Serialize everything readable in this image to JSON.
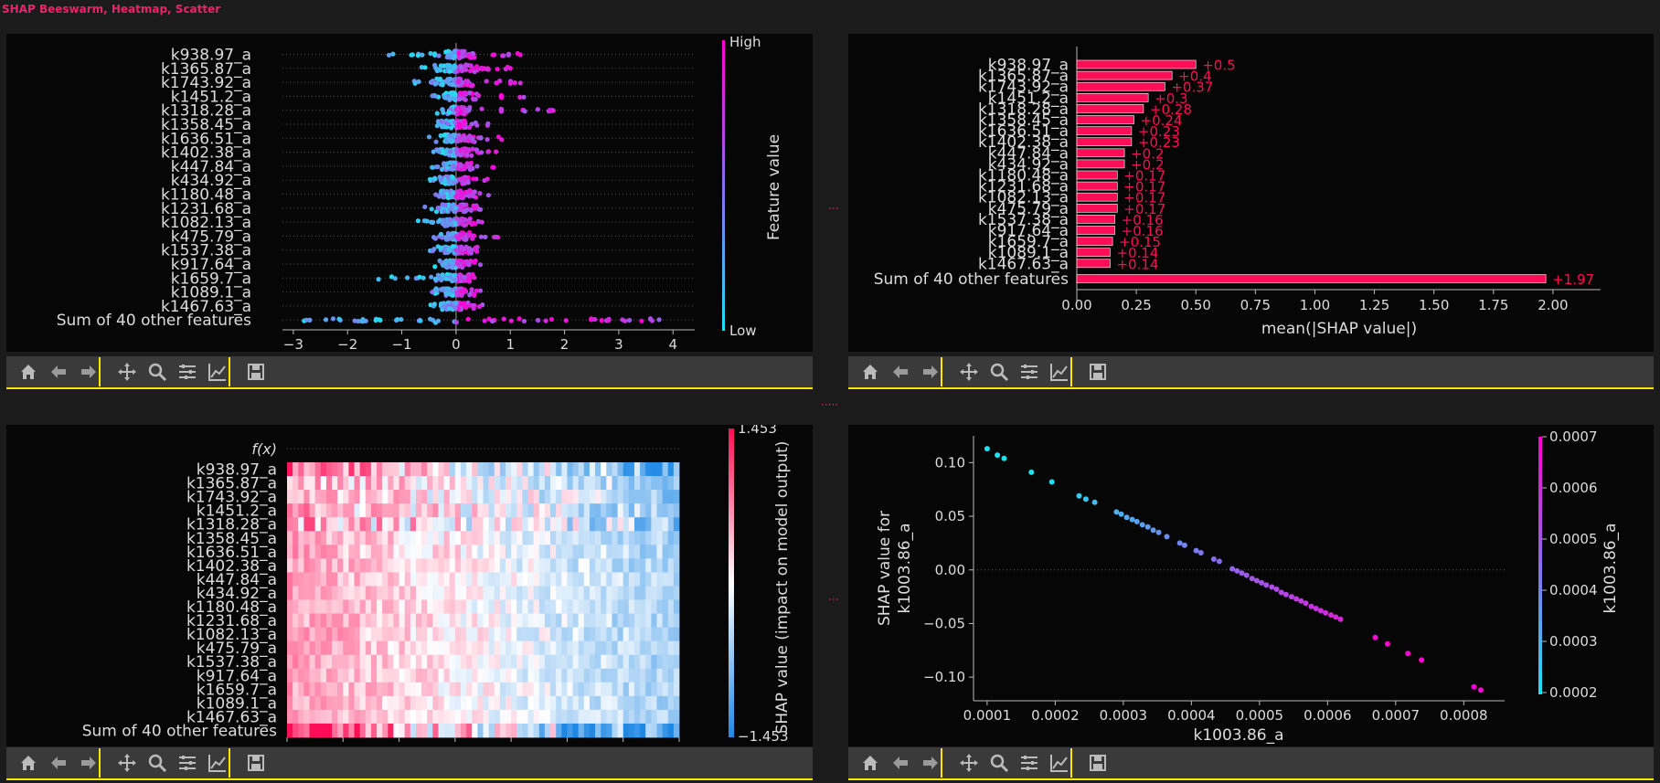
{
  "window": {
    "title": "SHAP Beeswarm, Heatmap, Scatter"
  },
  "toolbar": {
    "buttons": [
      "home-icon",
      "back-arrow-icon",
      "forward-arrow-icon",
      "pan-icon",
      "zoom-icon",
      "subplots-icon",
      "edit-axis-icon",
      "save-icon"
    ]
  },
  "colors": {
    "accent": "#e8246a",
    "toolbar_border": "#ffe600",
    "cyan": "#1de3f0",
    "magenta": "#ff00d4",
    "bar": "#ff0d57",
    "heat_pos": "#ff0d57",
    "heat_neg": "#1e88e5"
  },
  "features": [
    "k938.97_a",
    "k1365.87_a",
    "k1743.92_a",
    "k1451.2_a",
    "k1318.28_a",
    "k1358.45_a",
    "k1636.51_a",
    "k1402.38_a",
    "k447.84_a",
    "k434.92_a",
    "k1180.48_a",
    "k1231.68_a",
    "k1082.13_a",
    "k475.79_a",
    "k1537.38_a",
    "k917.64_a",
    "k1659.7_a",
    "k1089.1_a",
    "k1467.63_a",
    "Sum of 40 other features"
  ],
  "chart_data": [
    {
      "type": "scatter",
      "name": "beeswarm",
      "xlim": [
        -3.2,
        4.4
      ],
      "xticks": [
        -3,
        -2,
        -1,
        0,
        1,
        2,
        3,
        4
      ],
      "xtick_labels": [
        "−3",
        "−2",
        "−1",
        "0",
        "1",
        "2",
        "3",
        "4"
      ],
      "colorbar": {
        "high": "High",
        "low": "Low",
        "label": "Feature value"
      },
      "grid": false,
      "rows": [
        {
          "min": -1.3,
          "max": 1.2
        },
        {
          "min": -0.7,
          "max": 1.1
        },
        {
          "min": -0.8,
          "max": 1.4
        },
        {
          "min": -1.7,
          "max": 1.3
        },
        {
          "min": -0.4,
          "max": 2.0
        },
        {
          "min": -0.5,
          "max": 0.7
        },
        {
          "min": -0.5,
          "max": 0.9
        },
        {
          "min": -0.5,
          "max": 0.8
        },
        {
          "min": -0.5,
          "max": 0.7
        },
        {
          "min": -0.5,
          "max": 0.6
        },
        {
          "min": -0.5,
          "max": 0.6
        },
        {
          "min": -0.6,
          "max": 0.5
        },
        {
          "min": -0.7,
          "max": 0.5
        },
        {
          "min": -0.5,
          "max": 0.8
        },
        {
          "min": -0.6,
          "max": 0.5
        },
        {
          "min": -0.4,
          "max": 0.5
        },
        {
          "min": -1.5,
          "max": 0.5
        },
        {
          "min": -0.5,
          "max": 0.5
        },
        {
          "min": -0.5,
          "max": 0.5
        },
        {
          "min": -2.8,
          "max": 4.0
        }
      ]
    },
    {
      "type": "bar",
      "name": "mean-abs-shap",
      "categories": [
        "k938.97_a",
        "k1365.87_a",
        "k1743.92_a",
        "k1451.2_a",
        "k1318.28_a",
        "k1358.45_a",
        "k1636.51_a",
        "k1402.38_a",
        "k447.84_a",
        "k434.92_a",
        "k1180.48_a",
        "k1231.68_a",
        "k1082.13_a",
        "k475.79_a",
        "k1537.38_a",
        "k917.64_a",
        "k1659.7_a",
        "k1089.1_a",
        "k1467.63_a",
        "Sum of 40 other features"
      ],
      "values": [
        0.5,
        0.4,
        0.37,
        0.3,
        0.28,
        0.24,
        0.23,
        0.23,
        0.2,
        0.2,
        0.17,
        0.17,
        0.17,
        0.17,
        0.16,
        0.16,
        0.15,
        0.14,
        0.14,
        1.97
      ],
      "value_labels": [
        "+0.5",
        "+0.4",
        "+0.37",
        "+0.3",
        "+0.28",
        "+0.24",
        "+0.23",
        "+0.23",
        "+0.2",
        "+0.2",
        "+0.17",
        "+0.17",
        "+0.17",
        "+0.17",
        "+0.16",
        "+0.16",
        "+0.15",
        "+0.14",
        "+0.14",
        "+1.97"
      ],
      "xlabel": "mean(|SHAP value|)",
      "xlim": [
        0,
        2.2
      ],
      "xticks": [
        0.0,
        0.25,
        0.5,
        0.75,
        1.0,
        1.25,
        1.5,
        1.75,
        2.0
      ],
      "xtick_labels": [
        "0.00",
        "0.25",
        "0.50",
        "0.75",
        "1.00",
        "1.25",
        "1.50",
        "1.75",
        "2.00"
      ]
    },
    {
      "type": "heatmap",
      "name": "heatmap",
      "fx_label": "f(x)",
      "rows": 20,
      "cols": 70,
      "colorbar": {
        "max": "1.453",
        "min": "−1.453",
        "label": "SHAP value (impact on model output)"
      },
      "row_scale": [
        0.8,
        0.55,
        0.55,
        0.6,
        0.75,
        0.35,
        0.4,
        0.35,
        0.35,
        0.3,
        0.3,
        0.35,
        0.35,
        0.3,
        0.3,
        0.3,
        0.35,
        0.3,
        0.3,
        1.0
      ]
    },
    {
      "type": "scatter",
      "name": "dependence",
      "xlabel": "k1003.86_a",
      "ylabel": "SHAP value for\nk1003.86_a",
      "xlim": [
        8e-05,
        0.00086
      ],
      "ylim": [
        -0.122,
        0.125
      ],
      "xticks": [
        0.0001,
        0.0002,
        0.0003,
        0.0004,
        0.0005,
        0.0006,
        0.0007,
        0.0008
      ],
      "xtick_labels": [
        "0.0001",
        "0.0002",
        "0.0003",
        "0.0004",
        "0.0005",
        "0.0006",
        "0.0007",
        "0.0008"
      ],
      "yticks": [
        0.1,
        0.05,
        0.0,
        -0.05,
        -0.1
      ],
      "ytick_labels": [
        "0.10",
        "0.05",
        "0.00",
        "−0.05",
        "−0.10"
      ],
      "colorbar": {
        "label": "k1003.86_a",
        "min": 0.00018,
        "max": 0.0007,
        "ticks": [
          "0.0007",
          "0.0006",
          "0.0005",
          "0.0004",
          "0.0003",
          "0.0002"
        ]
      },
      "x": [
        0.0001,
        0.000115,
        0.000125,
        0.000165,
        0.000195,
        0.000235,
        0.000245,
        0.000258,
        0.00029,
        0.000297,
        0.000305,
        0.000313,
        0.00032,
        0.000328,
        0.000336,
        0.000344,
        0.000352,
        0.000364,
        0.000383,
        0.00039,
        0.000407,
        0.000414,
        0.000433,
        0.000441,
        0.00046,
        0.000467,
        0.000474,
        0.000481,
        0.000489,
        0.000496,
        0.000503,
        0.00051,
        0.000518,
        0.000525,
        0.000532,
        0.000539,
        0.000547,
        0.000554,
        0.000561,
        0.000568,
        0.000576,
        0.000583,
        0.00059,
        0.000597,
        0.000605,
        0.000612,
        0.000619,
        0.00067,
        0.000688,
        0.000718,
        0.000738,
        0.000815,
        0.000825
      ],
      "y": [
        0.113,
        0.107,
        0.104,
        0.091,
        0.082,
        0.069,
        0.066,
        0.063,
        0.054,
        0.052,
        0.049,
        0.047,
        0.045,
        0.042,
        0.04,
        0.037,
        0.035,
        0.031,
        0.025,
        0.023,
        0.018,
        0.016,
        0.01,
        0.008,
        0.001,
        -0.001,
        -0.003,
        -0.005,
        -0.008,
        -0.01,
        -0.012,
        -0.014,
        -0.016,
        -0.018,
        -0.021,
        -0.023,
        -0.025,
        -0.027,
        -0.029,
        -0.031,
        -0.034,
        -0.036,
        -0.038,
        -0.04,
        -0.042,
        -0.044,
        -0.046,
        -0.063,
        -0.069,
        -0.078,
        -0.084,
        -0.109,
        -0.112
      ]
    }
  ]
}
